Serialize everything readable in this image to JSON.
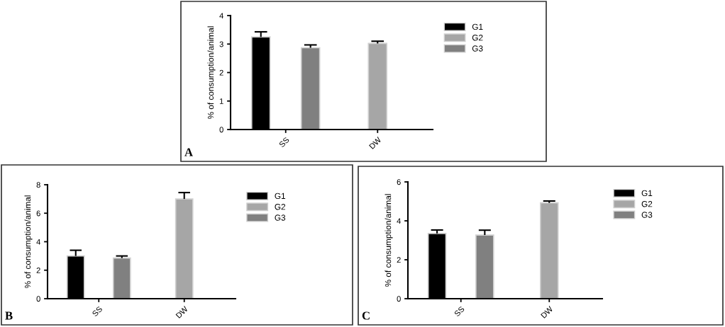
{
  "chart_data": [
    {
      "type": "bar",
      "categories": [
        "SS",
        "DW"
      ],
      "ylabel": "% of consumption/animal",
      "annotations": [
        "A"
      ],
      "ylim": [
        0,
        4
      ],
      "yticks": [
        0,
        1,
        2,
        3,
        4
      ],
      "grid": false,
      "legend": "top right",
      "series": [
        {
          "name": "G1",
          "color": "#000000",
          "values": [
            3.25,
            null
          ],
          "errors": [
            [
              3.25,
              3.43
            ],
            null
          ]
        },
        {
          "name": "G2",
          "color": "#a6a6a6",
          "values": [
            null,
            3.02
          ],
          "errors": [
            null,
            [
              3.02,
              3.1
            ]
          ]
        },
        {
          "name": "G3",
          "color": "#808080",
          "values": [
            2.87,
            null
          ],
          "errors": [
            [
              2.87,
              2.97
            ],
            null
          ]
        }
      ]
    },
    {
      "type": "bar",
      "categories": [
        "SS",
        "DW"
      ],
      "ylabel": "% of consumption/animal",
      "annotations": [
        "B"
      ],
      "ylim": [
        0,
        8
      ],
      "yticks": [
        0,
        2,
        4,
        6,
        8
      ],
      "grid": false,
      "legend": "top right",
      "series": [
        {
          "name": "G1",
          "color": "#000000",
          "values": [
            3.0,
            null
          ],
          "errors": [
            [
              3.0,
              3.4
            ],
            null
          ]
        },
        {
          "name": "G2",
          "color": "#a6a6a6",
          "values": [
            null,
            7.0
          ],
          "errors": [
            null,
            [
              7.0,
              7.45
            ]
          ]
        },
        {
          "name": "G3",
          "color": "#808080",
          "values": [
            2.85,
            null
          ],
          "errors": [
            [
              2.85,
              3.0
            ],
            null
          ]
        }
      ]
    },
    {
      "type": "bar",
      "categories": [
        "SS",
        "DW"
      ],
      "ylabel": "% of consumption/animal",
      "annotations": [
        "C"
      ],
      "ylim": [
        0,
        6
      ],
      "yticks": [
        0,
        2,
        4,
        6
      ],
      "grid": false,
      "legend": "top right",
      "series": [
        {
          "name": "G1",
          "color": "#000000",
          "values": [
            3.35,
            null
          ],
          "errors": [
            [
              3.35,
              3.53
            ],
            null
          ]
        },
        {
          "name": "G2",
          "color": "#a6a6a6",
          "values": [
            null,
            4.92
          ],
          "errors": [
            null,
            [
              4.92,
              5.02
            ]
          ]
        },
        {
          "name": "G3",
          "color": "#808080",
          "values": [
            3.27,
            null
          ],
          "errors": [
            [
              3.27,
              3.52
            ],
            null
          ]
        }
      ]
    }
  ]
}
